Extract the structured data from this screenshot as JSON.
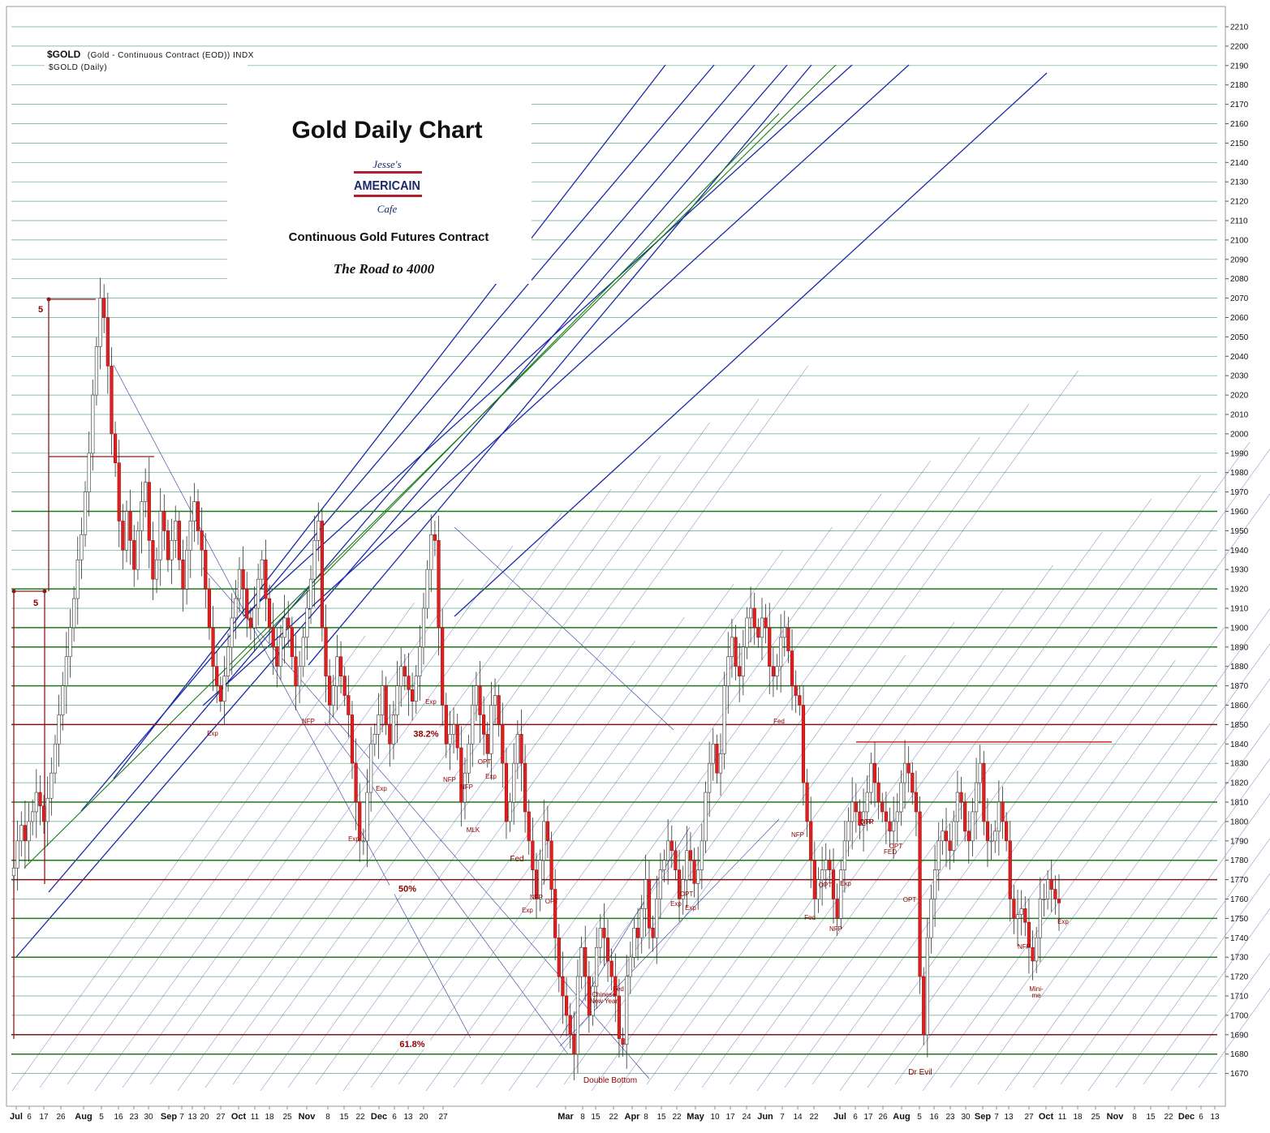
{
  "header": {
    "symbol": "$GOLD",
    "symbol_desc": "(Gold - Continuous Contract (EOD)) INDX",
    "series_label": "$GOLD (Daily)"
  },
  "titles": {
    "title": "Gold Daily Chart",
    "subtitle": "Continuous Gold Futures Contract",
    "tagline": "The Road to 4000"
  },
  "logo": {
    "line1": "Jesse's",
    "line2": "AMERICAIN",
    "line3": "Cafe"
  },
  "chart_data": {
    "type": "candlestick",
    "title": "Gold Daily Chart",
    "subtitle": "Continuous Gold Futures Contract",
    "ylim": [
      1665,
      2215
    ],
    "y_ticks": [
      2210,
      2200,
      2190,
      2180,
      2170,
      2160,
      2150,
      2140,
      2130,
      2120,
      2110,
      2100,
      2090,
      2080,
      2070,
      2060,
      2050,
      2040,
      2030,
      2020,
      2010,
      2000,
      1990,
      1980,
      1970,
      1960,
      1950,
      1940,
      1930,
      1920,
      1910,
      1900,
      1890,
      1880,
      1870,
      1860,
      1850,
      1840,
      1830,
      1820,
      1810,
      1800,
      1790,
      1780,
      1770,
      1760,
      1750,
      1740,
      1730,
      1720,
      1710,
      1700,
      1690,
      1680,
      1670
    ],
    "x_labels": [
      {
        "label": "Jul",
        "bold": true
      },
      {
        "label": "6"
      },
      {
        "label": "17"
      },
      {
        "label": "26"
      },
      {
        "label": "Aug",
        "bold": true
      },
      {
        "label": "5"
      },
      {
        "label": "16"
      },
      {
        "label": "23"
      },
      {
        "label": "30"
      },
      {
        "label": "Sep",
        "bold": true
      },
      {
        "label": "7"
      },
      {
        "label": "13"
      },
      {
        "label": "20"
      },
      {
        "label": "27"
      },
      {
        "label": "Oct",
        "bold": true
      },
      {
        "label": "11"
      },
      {
        "label": "18"
      },
      {
        "label": "25"
      },
      {
        "label": "Nov",
        "bold": true
      },
      {
        "label": "8"
      },
      {
        "label": "15"
      },
      {
        "label": "22"
      },
      {
        "label": "Dec",
        "bold": true
      },
      {
        "label": "6"
      },
      {
        "label": "13"
      },
      {
        "label": "20"
      },
      {
        "label": "27"
      },
      {
        "label": "Mar",
        "bold": true
      },
      {
        "label": "8"
      },
      {
        "label": "15"
      },
      {
        "label": "22"
      },
      {
        "label": "Apr",
        "bold": true
      },
      {
        "label": "8"
      },
      {
        "label": "15"
      },
      {
        "label": "22"
      },
      {
        "label": "May",
        "bold": true
      },
      {
        "label": "10"
      },
      {
        "label": "17"
      },
      {
        "label": "24"
      },
      {
        "label": "Jun",
        "bold": true
      },
      {
        "label": "7"
      },
      {
        "label": "14"
      },
      {
        "label": "22"
      },
      {
        "label": "Jul",
        "bold": true
      },
      {
        "label": "6"
      },
      {
        "label": "17"
      },
      {
        "label": "26"
      },
      {
        "label": "Aug",
        "bold": true
      },
      {
        "label": "5"
      },
      {
        "label": "16"
      },
      {
        "label": "23"
      },
      {
        "label": "30"
      },
      {
        "label": "Sep",
        "bold": true
      },
      {
        "label": "7"
      },
      {
        "label": "13"
      },
      {
        "label": "27"
      },
      {
        "label": "Oct",
        "bold": true
      },
      {
        "label": "11"
      },
      {
        "label": "18"
      },
      {
        "label": "25"
      },
      {
        "label": "Nov",
        "bold": true
      },
      {
        "label": "8"
      },
      {
        "label": "15"
      },
      {
        "label": "22"
      },
      {
        "label": "Dec",
        "bold": true
      },
      {
        "label": "6"
      },
      {
        "label": "13"
      }
    ],
    "horizontal_levels": {
      "green": [
        1960,
        1920,
        1900,
        1890,
        1870,
        1810,
        1780,
        1750,
        1730,
        1680
      ],
      "dark_red": [
        1850,
        1770,
        1690
      ],
      "red": [
        1841
      ]
    },
    "fib_labels": [
      {
        "text": "38.2%",
        "price": 1850
      },
      {
        "text": "50%",
        "price": 1770
      },
      {
        "text": "61.8%",
        "price": 1690
      }
    ],
    "measured_move_labels": [
      "5",
      "5"
    ],
    "pattern_labels": [
      "Double Bottom",
      "Dr Evil",
      "Mini-me"
    ],
    "event_labels": [
      "Exp",
      "NFP",
      "Exp",
      "Exp",
      "NFP",
      "Exp",
      "NFP",
      "OPT",
      "MLK",
      "Exp",
      "Fed",
      "NFP",
      "OPT",
      "Exp",
      "Chinese New Year",
      "Fed",
      "Exp",
      "OPT",
      "Exp",
      "Fed",
      "NFP",
      "Fed",
      "OPT",
      "Exp",
      "NFP",
      "QTR",
      "OPT",
      "FED",
      "OPT",
      "NFP",
      "Exp",
      "NFP"
    ],
    "series": [
      {
        "closes": [
          1776,
          1790,
          1798,
          1790,
          1800,
          1805,
          1815,
          1808,
          1800,
          1812,
          1825,
          1840,
          1855,
          1870,
          1885,
          1900,
          1915,
          1935,
          1948,
          1970,
          1990,
          2020,
          2045,
          2070,
          2060,
          2035,
          2000,
          1985,
          1955,
          1940,
          1960,
          1945,
          1930,
          1950,
          1965,
          1975,
          1945,
          1925,
          1935,
          1960,
          1950,
          1935,
          1945,
          1955,
          1935,
          1920,
          1940,
          1955,
          1965,
          1950,
          1940,
          1920,
          1900,
          1880,
          1870,
          1862,
          1875,
          1890,
          1905,
          1915,
          1930,
          1920,
          1905,
          1900,
          1910,
          1925,
          1935,
          1915,
          1900,
          1890,
          1880,
          1895,
          1905,
          1900,
          1885,
          1870,
          1880,
          1895,
          1910,
          1925,
          1945,
          1955,
          1900,
          1875,
          1860,
          1870,
          1885,
          1875,
          1865,
          1855,
          1830,
          1810,
          1790,
          1790,
          1815,
          1840,
          1845,
          1855,
          1870,
          1850,
          1840,
          1855,
          1870,
          1880,
          1875,
          1868,
          1862,
          1875,
          1890,
          1910,
          1930,
          1948,
          1945,
          1900,
          1860,
          1840,
          1845,
          1850,
          1838,
          1810,
          1825,
          1840,
          1860,
          1870,
          1855,
          1845,
          1835,
          1860,
          1865,
          1850,
          1830,
          1800,
          1810,
          1830,
          1845,
          1830,
          1805,
          1790,
          1775,
          1760,
          1780,
          1800,
          1790,
          1765,
          1740,
          1720,
          1710,
          1700,
          1690,
          1680,
          1720,
          1735,
          1720,
          1700,
          1715,
          1735,
          1745,
          1740,
          1728,
          1720,
          1710,
          1688,
          1685,
          1720,
          1730,
          1745,
          1740,
          1755,
          1770,
          1745,
          1740,
          1760,
          1775,
          1780,
          1790,
          1785,
          1775,
          1760,
          1770,
          1785,
          1780,
          1768,
          1775,
          1790,
          1815,
          1830,
          1840,
          1825,
          1835,
          1870,
          1885,
          1895,
          1880,
          1875,
          1890,
          1905,
          1910,
          1900,
          1895,
          1905,
          1900,
          1880,
          1875,
          1880,
          1895,
          1900,
          1888,
          1870,
          1865,
          1860,
          1820,
          1800,
          1780,
          1760,
          1770,
          1775,
          1780,
          1775,
          1760,
          1750,
          1775,
          1790,
          1800,
          1810,
          1805,
          1798,
          1805,
          1815,
          1830,
          1820,
          1810,
          1805,
          1800,
          1795,
          1800,
          1805,
          1820,
          1830,
          1825,
          1815,
          1805,
          1720,
          1690,
          1740,
          1760,
          1775,
          1790,
          1795,
          1790,
          1785,
          1800,
          1815,
          1810,
          1795,
          1790,
          1805,
          1820,
          1830,
          1800,
          1790,
          1790,
          1795,
          1810,
          1800,
          1790,
          1760,
          1750,
          1752,
          1755,
          1748,
          1735,
          1728,
          1740,
          1760,
          1760,
          1770,
          1765,
          1760,
          1758
        ]
      }
    ]
  }
}
